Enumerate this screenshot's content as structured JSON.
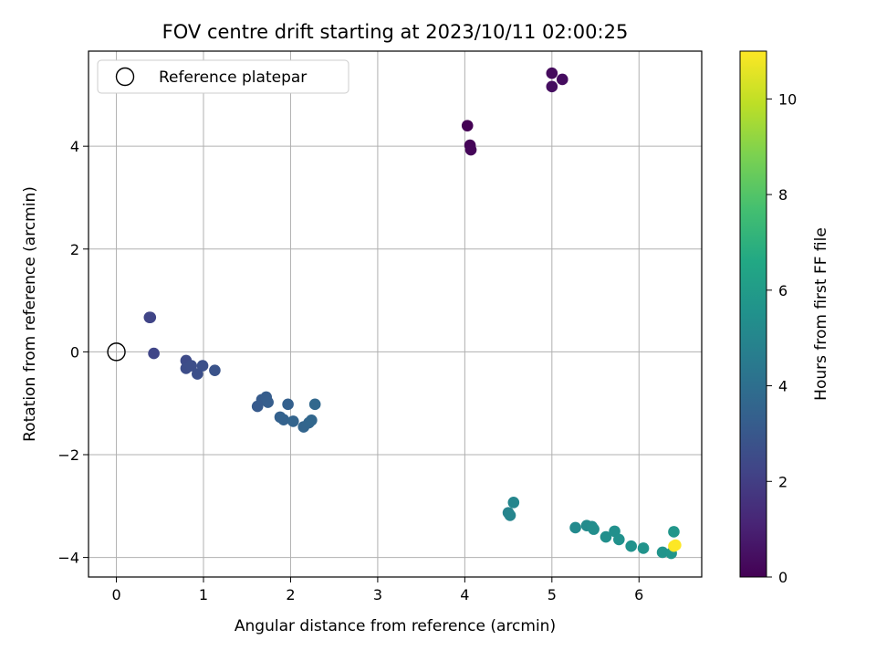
{
  "chart_data": {
    "type": "scatter",
    "title": "FOV centre drift starting at 2023/10/11 02:00:25",
    "xlabel": "Angular distance from reference (arcmin)",
    "ylabel": "Rotation from reference (arcmin)",
    "xlim": [
      -0.32,
      6.72
    ],
    "ylim": [
      -4.38,
      5.85
    ],
    "xticks": [
      0,
      1,
      2,
      3,
      4,
      5,
      6
    ],
    "yticks": [
      -4,
      -2,
      0,
      2,
      4
    ],
    "grid": true,
    "colorbar": {
      "label": "Hours from first FF file",
      "colormap": "viridis",
      "range": [
        0,
        11
      ],
      "ticks": [
        0,
        2,
        4,
        6,
        8,
        10
      ]
    },
    "legend": {
      "placement": "upper-left",
      "entries": [
        {
          "label": "Reference platepar",
          "marker": "open-circle"
        }
      ]
    },
    "reference_point": {
      "x": 0,
      "y": 0
    },
    "points": [
      {
        "x": 4.03,
        "y": 4.4,
        "hours": 0.0
      },
      {
        "x": 4.06,
        "y": 4.02,
        "hours": 0.1
      },
      {
        "x": 4.07,
        "y": 3.93,
        "hours": 0.15
      },
      {
        "x": 5.0,
        "y": 5.42,
        "hours": 0.3
      },
      {
        "x": 5.12,
        "y": 5.3,
        "hours": 0.35
      },
      {
        "x": 5.0,
        "y": 5.16,
        "hours": 0.4
      },
      {
        "x": 0.38,
        "y": 0.67,
        "hours": 2.2
      },
      {
        "x": 0.39,
        "y": 0.67,
        "hours": 2.25
      },
      {
        "x": 0.43,
        "y": -0.03,
        "hours": 2.3
      },
      {
        "x": 0.8,
        "y": -0.17,
        "hours": 2.5
      },
      {
        "x": 0.8,
        "y": -0.32,
        "hours": 2.55
      },
      {
        "x": 0.86,
        "y": -0.27,
        "hours": 2.6
      },
      {
        "x": 0.93,
        "y": -0.43,
        "hours": 2.65
      },
      {
        "x": 0.99,
        "y": -0.27,
        "hours": 2.7
      },
      {
        "x": 1.13,
        "y": -0.36,
        "hours": 2.8
      },
      {
        "x": 1.62,
        "y": -1.06,
        "hours": 3.1
      },
      {
        "x": 1.67,
        "y": -0.93,
        "hours": 3.15
      },
      {
        "x": 1.72,
        "y": -0.88,
        "hours": 3.2
      },
      {
        "x": 1.74,
        "y": -0.98,
        "hours": 3.25
      },
      {
        "x": 1.97,
        "y": -1.02,
        "hours": 3.35
      },
      {
        "x": 1.88,
        "y": -1.27,
        "hours": 3.4
      },
      {
        "x": 1.92,
        "y": -1.32,
        "hours": 3.45
      },
      {
        "x": 2.03,
        "y": -1.35,
        "hours": 3.5
      },
      {
        "x": 2.15,
        "y": -1.46,
        "hours": 3.55
      },
      {
        "x": 2.21,
        "y": -1.38,
        "hours": 3.6
      },
      {
        "x": 2.24,
        "y": -1.33,
        "hours": 3.65
      },
      {
        "x": 2.28,
        "y": -1.02,
        "hours": 3.7
      },
      {
        "x": 4.5,
        "y": -3.13,
        "hours": 4.9
      },
      {
        "x": 4.52,
        "y": -3.18,
        "hours": 4.95
      },
      {
        "x": 4.56,
        "y": -2.93,
        "hours": 5.0
      },
      {
        "x": 5.27,
        "y": -3.42,
        "hours": 5.2
      },
      {
        "x": 5.4,
        "y": -3.38,
        "hours": 5.25
      },
      {
        "x": 5.46,
        "y": -3.4,
        "hours": 5.3
      },
      {
        "x": 5.48,
        "y": -3.45,
        "hours": 5.35
      },
      {
        "x": 5.62,
        "y": -3.6,
        "hours": 5.4
      },
      {
        "x": 5.72,
        "y": -3.49,
        "hours": 5.45
      },
      {
        "x": 5.77,
        "y": -3.65,
        "hours": 5.5
      },
      {
        "x": 5.91,
        "y": -3.78,
        "hours": 5.55
      },
      {
        "x": 6.05,
        "y": -3.82,
        "hours": 5.6
      },
      {
        "x": 6.27,
        "y": -3.9,
        "hours": 5.65
      },
      {
        "x": 6.37,
        "y": -3.92,
        "hours": 5.7
      },
      {
        "x": 6.4,
        "y": -3.5,
        "hours": 5.75
      },
      {
        "x": 6.4,
        "y": -3.78,
        "hours": 10.9
      },
      {
        "x": 6.42,
        "y": -3.76,
        "hours": 11.0
      }
    ]
  }
}
